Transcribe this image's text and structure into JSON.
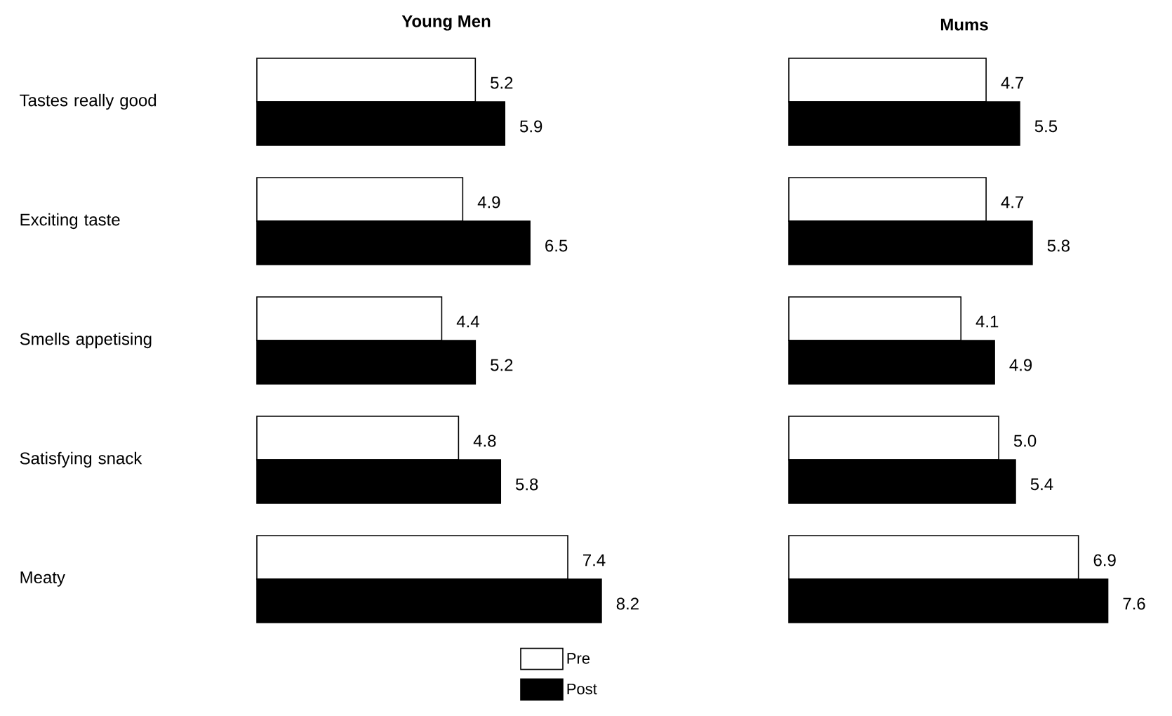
{
  "chart_data": [
    {
      "type": "bar",
      "orientation": "horizontal",
      "title": "Young Men",
      "categories": [
        "Tastes really good",
        "Exciting taste",
        "Smells appetising",
        "Satisfying snack",
        "Meaty"
      ],
      "series": [
        {
          "name": "Pre",
          "color": "#ffffff",
          "values": [
            5.2,
            4.9,
            4.4,
            4.8,
            7.4
          ],
          "value_labels": [
            "5.2",
            "4.9",
            "4.4",
            "4.8",
            "7.4"
          ]
        },
        {
          "name": "Post",
          "color": "#000000",
          "values": [
            5.9,
            6.5,
            5.2,
            5.8,
            8.2
          ],
          "value_labels": [
            "5.9",
            "6.5",
            "5.2",
            "5.8",
            "8.2"
          ]
        }
      ],
      "legend": "bottom",
      "tick_labels": "y"
    },
    {
      "type": "bar",
      "orientation": "horizontal",
      "title": "Mums",
      "categories": [
        null,
        null,
        null,
        null,
        null
      ],
      "series": [
        {
          "color": "#ffffff",
          "values": [
            4.7,
            4.7,
            4.1,
            5.0,
            6.9
          ],
          "value_labels": [
            "4.7",
            "4.7",
            "4.1",
            "5.0",
            "6.9"
          ]
        },
        {
          "color": "#000000",
          "values": [
            5.5,
            5.8,
            4.9,
            5.4,
            7.6
          ],
          "value_labels": [
            "5.5",
            "5.8",
            "4.9",
            "5.4",
            "7.6"
          ]
        }
      ],
      "tick_labels": false
    }
  ]
}
